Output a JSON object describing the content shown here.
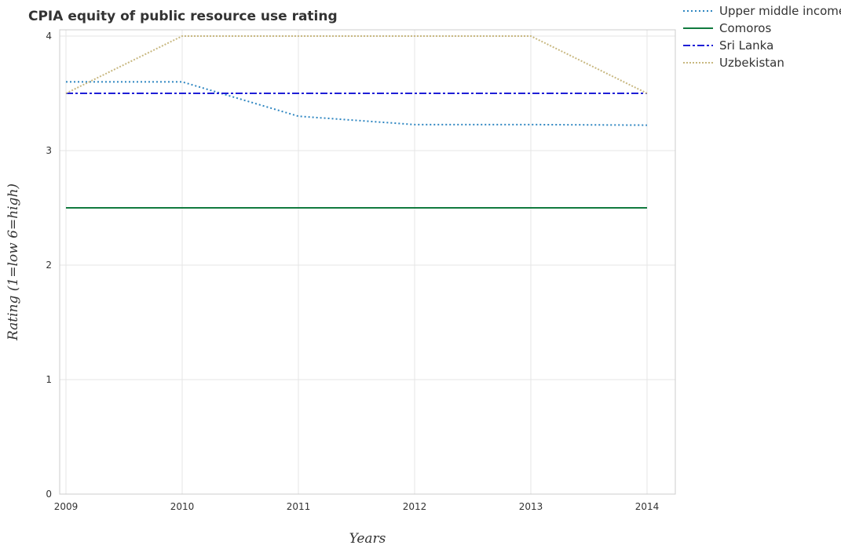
{
  "chart_data": {
    "type": "line",
    "title": "CPIA equity of public resource use rating",
    "xlabel": "Years",
    "ylabel": "Rating (1=low 6=high)",
    "x": [
      "2009",
      "2010",
      "2011",
      "2012",
      "2013",
      "2014"
    ],
    "ylim": [
      0,
      4
    ],
    "yticks": [
      "0",
      "1",
      "2",
      "3",
      "4"
    ],
    "grid": true,
    "legend_position": "top-right",
    "series": [
      {
        "name": "Upper middle income",
        "values": [
          3.6,
          3.6,
          3.3,
          3.227,
          3.227,
          3.222
        ],
        "color": "#2e86c1",
        "dash": "2,3"
      },
      {
        "name": "Comoros",
        "values": [
          2.5,
          2.5,
          2.5,
          2.5,
          2.5,
          2.5
        ],
        "color": "#117a3e",
        "dash": ""
      },
      {
        "name": "Sri Lanka",
        "values": [
          3.5,
          3.5,
          3.5,
          3.5,
          3.5,
          3.5
        ],
        "color": "#1f1fd6",
        "dash": "9,3,3,3"
      },
      {
        "name": "Uzbekistan",
        "values": [
          3.5,
          4.0,
          4.0,
          4.0,
          4.0,
          3.5
        ],
        "color": "#c8b880",
        "dash": "2,2"
      }
    ]
  }
}
